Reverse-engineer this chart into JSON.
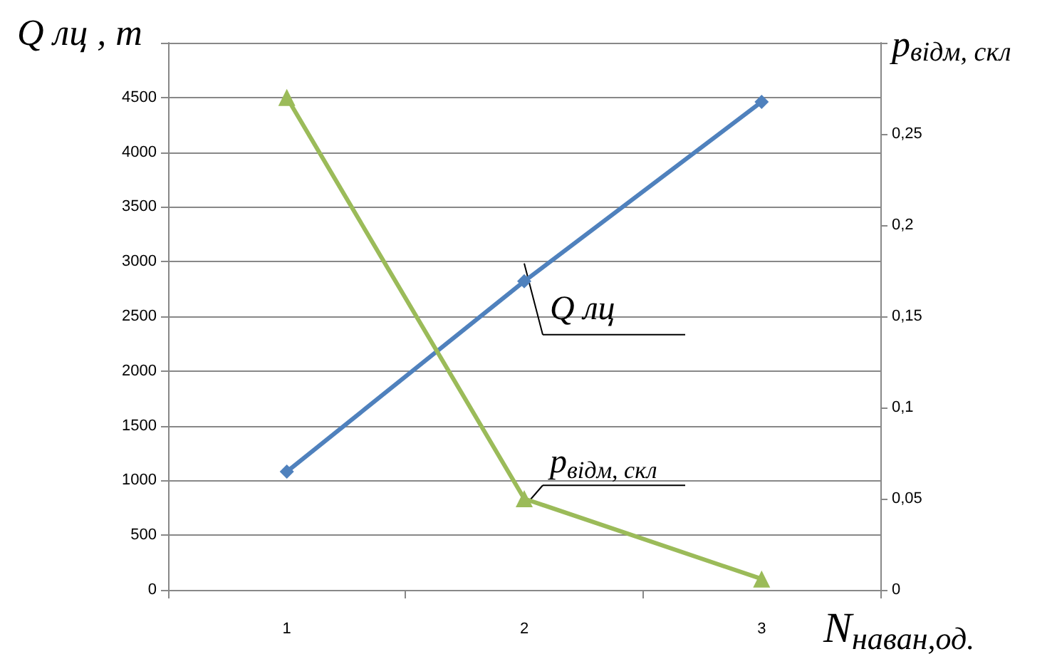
{
  "chart_data": {
    "type": "line",
    "categories": [
      "1",
      "2",
      "3"
    ],
    "xlabel": "N$_{наван,од.}$",
    "ylabel": "Q лц , т",
    "y2label": "p$_{відм, скл}$",
    "series": [
      {
        "name": "Q лц",
        "color": "#4f81bd",
        "marker": "diamond",
        "values": [
          1080,
          2820,
          4460
        ]
      },
      {
        "name": "p$_{відм, скл}$",
        "color": "#9bbb59",
        "marker": "triangle",
        "axis": "y2",
        "values": [
          0.27,
          0.05,
          0.006
        ]
      }
    ],
    "ylim": [
      0,
      5000
    ],
    "yticks": [
      0,
      500,
      1000,
      1500,
      2000,
      2500,
      3000,
      3500,
      4000,
      4500,
      {
        "value": 5000,
        "label": null
      }
    ],
    "y2lim": [
      0,
      0.3
    ],
    "y2ticks": [
      {
        "value": 0,
        "label": "0"
      },
      {
        "value": 0.05,
        "label": "0,05"
      },
      {
        "value": 0.1,
        "label": "0,1"
      },
      {
        "value": 0.15,
        "label": "0,15"
      },
      {
        "value": 0.2,
        "label": "0,2"
      },
      {
        "value": 0.25,
        "label": "0,25"
      },
      {
        "value": 0.3,
        "label": null
      }
    ],
    "grid": "y",
    "line_style": "solid"
  }
}
